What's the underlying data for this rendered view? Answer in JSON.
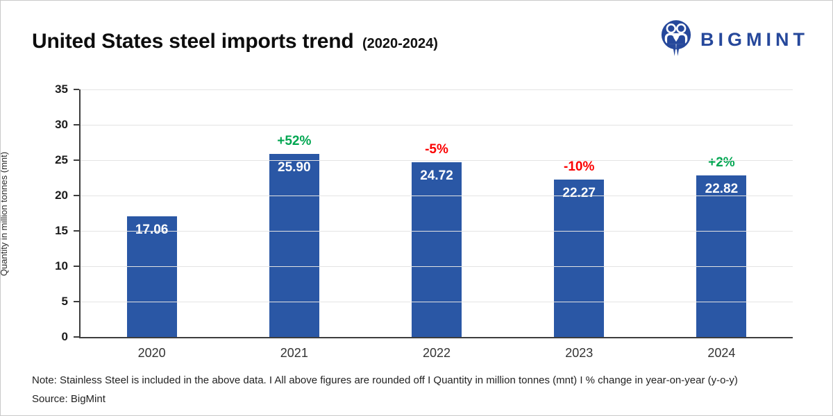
{
  "header": {
    "title": "United States steel imports trend",
    "subtitle": "(2020-2024)",
    "brand": "BIGMINT"
  },
  "chart_data": {
    "type": "bar",
    "title": "United States steel imports trend (2020-2024)",
    "categories": [
      "2020",
      "2021",
      "2022",
      "2023",
      "2024"
    ],
    "values": [
      17.06,
      25.9,
      24.72,
      22.27,
      22.82
    ],
    "value_labels": [
      "17.06",
      "25.90",
      "24.72",
      "22.27",
      "22.82"
    ],
    "pct_change": [
      null,
      "+52%",
      "-5%",
      "-10%",
      "+2%"
    ],
    "pct_change_sign": [
      null,
      "up",
      "down",
      "down",
      "up"
    ],
    "xlabel": "",
    "ylabel": "Quantity in million tonnes (mnt)",
    "ylim": [
      0,
      35
    ],
    "ytick_step": 5,
    "grid": "horizontal",
    "legend": "none",
    "bar_color": "#2a57a5",
    "up_color": "#00a651",
    "down_color": "#fb0000"
  },
  "footer": {
    "note": "Note: Stainless Steel is included in the above data.  I  All above figures are rounded off  I  Quantity in million tonnes (mnt)  I  % change in year-on-year (y-o-y)",
    "source": "Source: BigMint"
  }
}
